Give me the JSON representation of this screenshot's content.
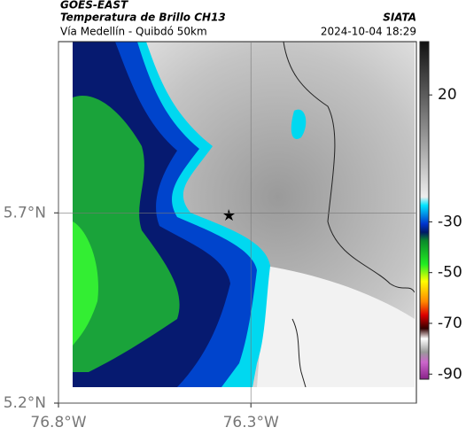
{
  "header": {
    "source": "GOES-EAST",
    "title": "Temperatura de Brillo CH13",
    "subtitle": "Vía Medellín - Quibdó 50km",
    "credit": "SIATA",
    "timestamp": "2024-10-04 18:29"
  },
  "map": {
    "xlim": [
      -76.8,
      -75.87
    ],
    "ylim": [
      5.2,
      6.15
    ],
    "xticks": [
      {
        "value": -76.8,
        "label": "76.8°W"
      },
      {
        "value": -76.3,
        "label": "76.3°W"
      }
    ],
    "yticks": [
      {
        "value": 5.7,
        "label": "5.7°N"
      },
      {
        "value": 5.2,
        "label": "5.2°N"
      }
    ],
    "grid": true
  },
  "colorbar": {
    "lim": [
      -92,
      41
    ],
    "ticks": [
      20,
      -30,
      -50,
      -70,
      -90
    ]
  }
}
